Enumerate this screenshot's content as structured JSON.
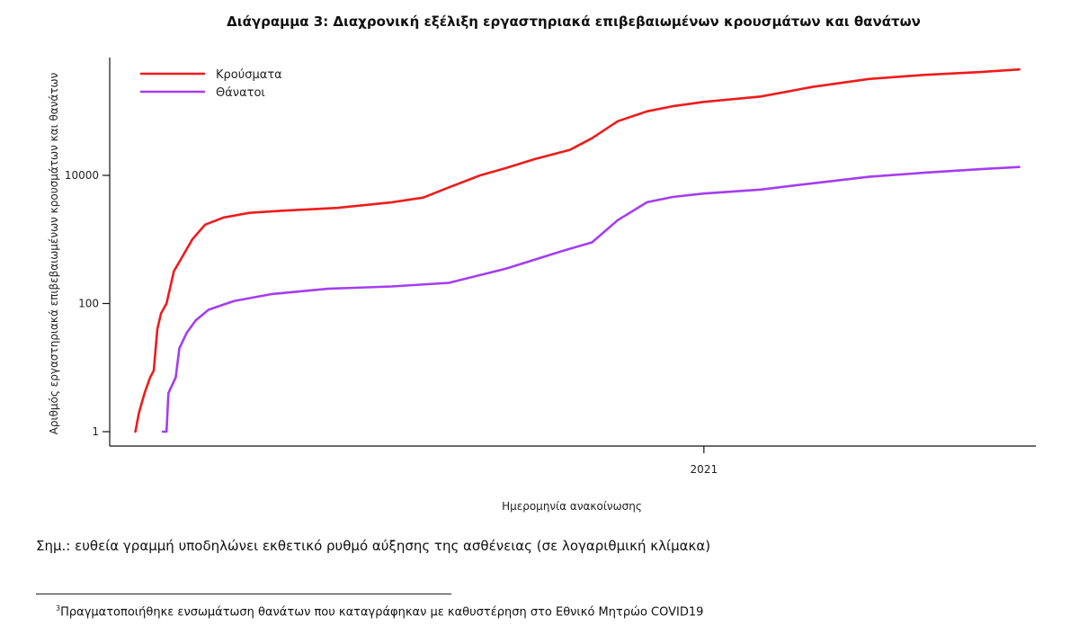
{
  "chart_data": {
    "type": "line",
    "title": "Διάγραμμα 3: Διαχρονική εξέλιξη εργαστηριακά επιβεβαιωμένων κρουσμάτων και θανάτων",
    "xlabel": "Ημερομηνία ανακοίνωσης",
    "ylabel": "Αριθμός εργαστηριακά επιβεβαιωμένων κρουσμάτων και θανάτων",
    "y_scale": "log",
    "y_ticks": [
      {
        "value": 1,
        "label": "1"
      },
      {
        "value": 100,
        "label": "100"
      },
      {
        "value": 10000,
        "label": "10000"
      }
    ],
    "x_ticks": [
      {
        "value": "2021-01-01",
        "label": "2021"
      }
    ],
    "xlim": [
      "2020-02-12",
      "2021-07-01"
    ],
    "legend": "top-left",
    "series": [
      {
        "name": "Κρούσματα",
        "color": "#ef1b1b",
        "points": [
          [
            "2020-02-26",
            1
          ],
          [
            "2020-02-28",
            2
          ],
          [
            "2020-03-02",
            4
          ],
          [
            "2020-03-05",
            7
          ],
          [
            "2020-03-07",
            9
          ],
          [
            "2020-03-09",
            40
          ],
          [
            "2020-03-11",
            70
          ],
          [
            "2020-03-14",
            100
          ],
          [
            "2020-03-18",
            320
          ],
          [
            "2020-03-22",
            500
          ],
          [
            "2020-03-28",
            1000
          ],
          [
            "2020-04-04",
            1700
          ],
          [
            "2020-04-14",
            2200
          ],
          [
            "2020-04-28",
            2600
          ],
          [
            "2020-05-15",
            2800
          ],
          [
            "2020-06-15",
            3100
          ],
          [
            "2020-07-15",
            3800
          ],
          [
            "2020-08-01",
            4500
          ],
          [
            "2020-08-15",
            6500
          ],
          [
            "2020-09-01",
            10000
          ],
          [
            "2020-09-15",
            13000
          ],
          [
            "2020-10-01",
            18000
          ],
          [
            "2020-10-20",
            25000
          ],
          [
            "2020-11-01",
            38000
          ],
          [
            "2020-11-15",
            70000
          ],
          [
            "2020-12-01",
            100000
          ],
          [
            "2020-12-15",
            120000
          ],
          [
            "2021-01-01",
            140000
          ],
          [
            "2021-02-01",
            170000
          ],
          [
            "2021-03-01",
            240000
          ],
          [
            "2021-04-01",
            320000
          ],
          [
            "2021-05-01",
            370000
          ],
          [
            "2021-06-01",
            410000
          ],
          [
            "2021-06-22",
            450000
          ]
        ]
      },
      {
        "name": "Θάνατοι",
        "color": "#a43df0",
        "points": [
          [
            "2020-03-12",
            1
          ],
          [
            "2020-03-14",
            1
          ],
          [
            "2020-03-15",
            4
          ],
          [
            "2020-03-19",
            7
          ],
          [
            "2020-03-21",
            20
          ],
          [
            "2020-03-25",
            35
          ],
          [
            "2020-03-30",
            55
          ],
          [
            "2020-04-06",
            80
          ],
          [
            "2020-04-20",
            110
          ],
          [
            "2020-05-10",
            140
          ],
          [
            "2020-06-10",
            170
          ],
          [
            "2020-07-15",
            185
          ],
          [
            "2020-08-15",
            210
          ],
          [
            "2020-09-15",
            350
          ],
          [
            "2020-10-15",
            650
          ],
          [
            "2020-11-01",
            900
          ],
          [
            "2020-11-15",
            2000
          ],
          [
            "2020-12-01",
            3800
          ],
          [
            "2020-12-15",
            4600
          ],
          [
            "2021-01-01",
            5200
          ],
          [
            "2021-02-01",
            6000
          ],
          [
            "2021-03-01",
            7500
          ],
          [
            "2021-04-01",
            9500
          ],
          [
            "2021-05-01",
            11000
          ],
          [
            "2021-06-01",
            12500
          ],
          [
            "2021-06-22",
            13500
          ]
        ]
      }
    ]
  },
  "note": "Σημ.: ευθεία γραμμή υποδηλώνει εκθετικό ρυθμό αύξησης της ασθένειας (σε λογαριθμική κλίμακα)",
  "footnote": {
    "marker": "3",
    "text": "Πραγματοποιήθηκε ενσωμάτωση θανάτων που καταγράφηκαν με καθυστέρηση στο Εθνικό Μητρώο COVID19"
  }
}
